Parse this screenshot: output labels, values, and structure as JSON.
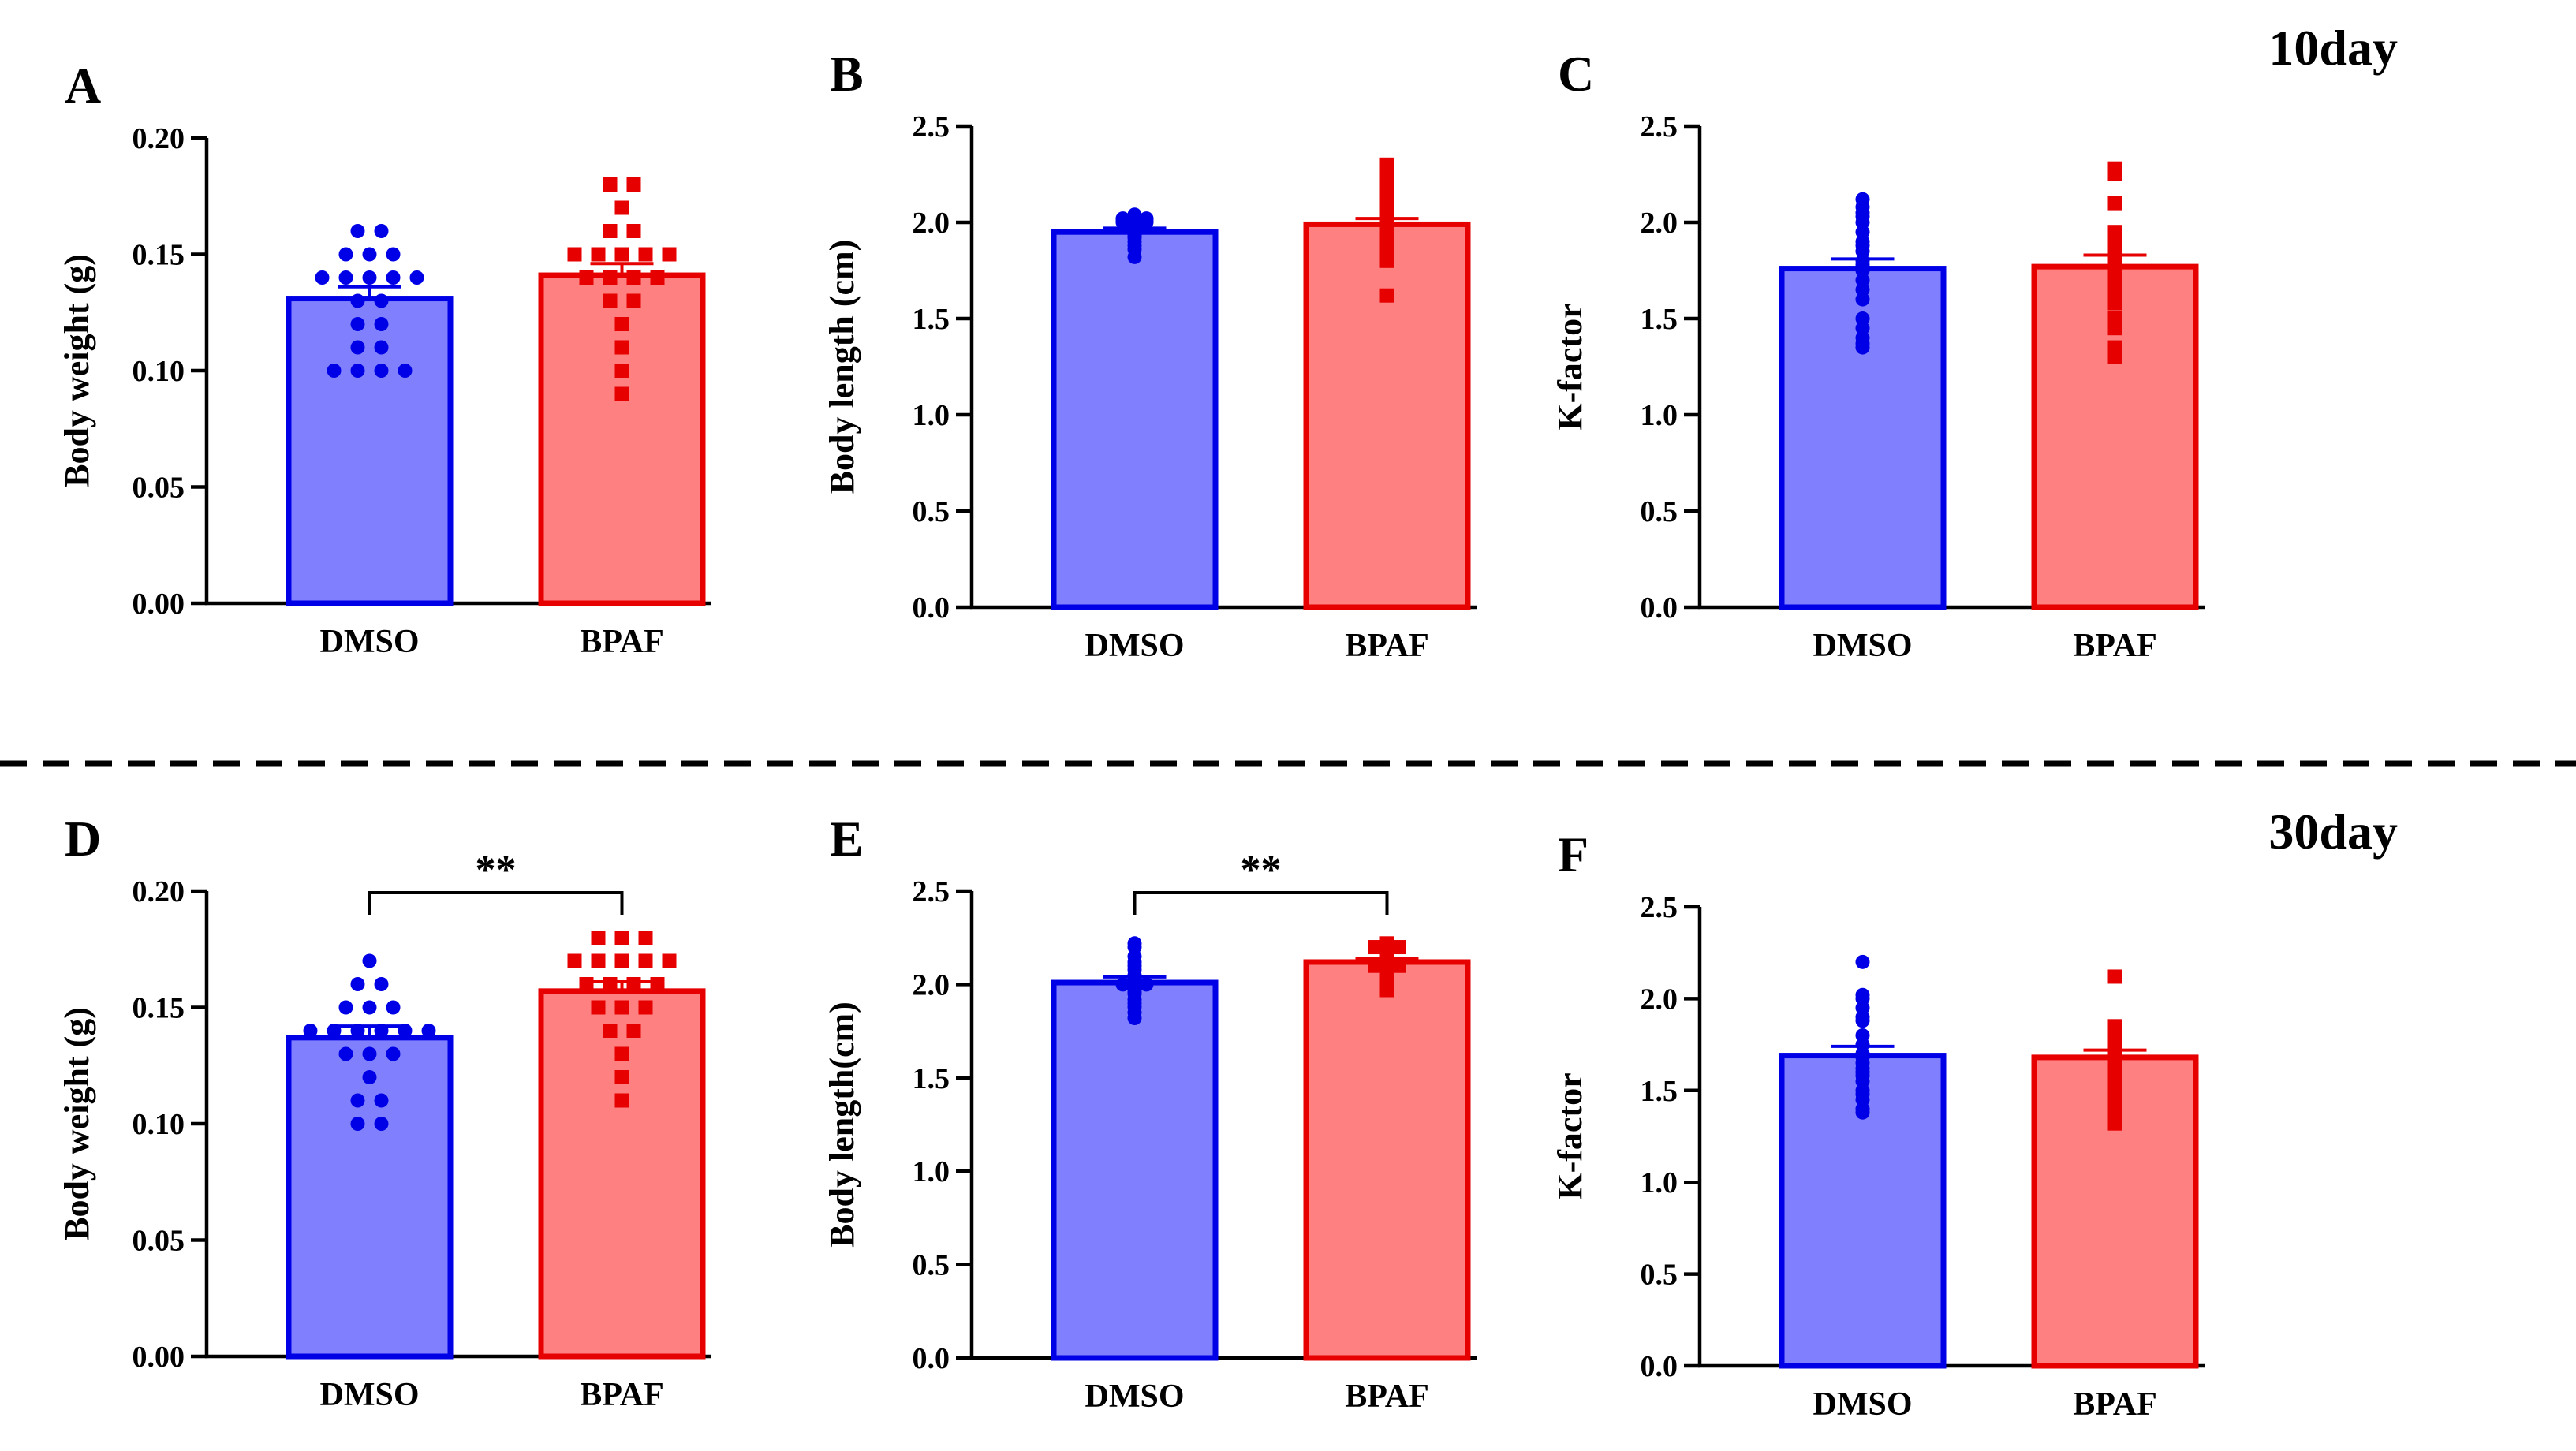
{
  "figure": {
    "day_labels": [
      "10day",
      "30day"
    ],
    "colors": {
      "dmso_fill": "#8080FF",
      "dmso_edge": "#0000E6",
      "bpaf_fill": "#FF8080",
      "bpaf_edge": "#E60000",
      "separator": "#000000"
    }
  },
  "chart_data": [
    {
      "panel": "A",
      "type": "bar",
      "row_label": "10day",
      "categories": [
        "DMSO",
        "BPAF"
      ],
      "ylabel": "Body weight (g)",
      "ylim": [
        0,
        0.2
      ],
      "yticks": [
        "0.00",
        "0.05",
        "0.10",
        "0.15",
        "0.20"
      ],
      "series": [
        {
          "name": "DMSO",
          "mean": 0.131,
          "sem": 0.005,
          "marker": "circle",
          "points": [
            0.16,
            0.16,
            0.15,
            0.15,
            0.15,
            0.14,
            0.14,
            0.14,
            0.14,
            0.14,
            0.13,
            0.13,
            0.12,
            0.12,
            0.11,
            0.11,
            0.1,
            0.1,
            0.1,
            0.1
          ]
        },
        {
          "name": "BPAF",
          "mean": 0.141,
          "sem": 0.005,
          "marker": "square",
          "points": [
            0.18,
            0.18,
            0.17,
            0.16,
            0.16,
            0.15,
            0.15,
            0.15,
            0.15,
            0.15,
            0.14,
            0.14,
            0.14,
            0.14,
            0.13,
            0.13,
            0.12,
            0.11,
            0.1,
            0.09
          ]
        }
      ]
    },
    {
      "panel": "B",
      "type": "bar",
      "row_label": "10day",
      "categories": [
        "DMSO",
        "BPAF"
      ],
      "ylabel": "Body length (cm)",
      "ylim": [
        0,
        2.5
      ],
      "yticks": [
        "0.0",
        "0.5",
        "1.0",
        "1.5",
        "2.0",
        "2.5"
      ],
      "series": [
        {
          "name": "DMSO",
          "mean": 1.95,
          "sem": 0.02,
          "marker": "circle",
          "points": [
            2.04,
            2.03,
            2.02,
            2.02,
            2.01,
            2.01,
            2.0,
            2.0,
            1.99,
            1.98,
            1.97,
            1.96,
            1.95,
            1.94,
            1.93,
            1.92,
            1.9,
            1.88,
            1.86,
            1.82
          ]
        },
        {
          "name": "BPAF",
          "mean": 1.99,
          "sem": 0.03,
          "marker": "square",
          "points": [
            2.3,
            2.25,
            2.18,
            2.12,
            2.1,
            2.08,
            2.06,
            2.05,
            2.04,
            2.03,
            2.02,
            2.01,
            2.0,
            1.98,
            1.96,
            1.92,
            1.88,
            1.85,
            1.8,
            1.62
          ]
        }
      ]
    },
    {
      "panel": "C",
      "type": "bar",
      "row_label": "10day",
      "categories": [
        "DMSO",
        "BPAF"
      ],
      "ylabel": "K-factor",
      "ylim": [
        0,
        2.5
      ],
      "yticks": [
        "0.0",
        "0.5",
        "1.0",
        "1.5",
        "2.0",
        "2.5"
      ],
      "series": [
        {
          "name": "DMSO",
          "mean": 1.76,
          "sem": 0.05,
          "marker": "circle",
          "points": [
            2.12,
            2.08,
            2.05,
            2.03,
            2.0,
            1.95,
            1.9,
            1.88,
            1.85,
            1.8,
            1.78,
            1.75,
            1.7,
            1.65,
            1.6,
            1.5,
            1.45,
            1.4,
            1.37,
            1.35
          ]
        },
        {
          "name": "BPAF",
          "mean": 1.77,
          "sem": 0.06,
          "marker": "square",
          "points": [
            2.28,
            2.26,
            2.25,
            2.1,
            1.95,
            1.9,
            1.88,
            1.85,
            1.8,
            1.78,
            1.75,
            1.7,
            1.65,
            1.62,
            1.6,
            1.58,
            1.5,
            1.45,
            1.35,
            1.3
          ]
        }
      ]
    },
    {
      "panel": "D",
      "type": "bar",
      "row_label": "30day",
      "categories": [
        "DMSO",
        "BPAF"
      ],
      "ylabel": "Body weight (g)",
      "ylim": [
        0,
        0.2
      ],
      "yticks": [
        "0.00",
        "0.05",
        "0.10",
        "0.15",
        "0.20"
      ],
      "significance": "**",
      "series": [
        {
          "name": "DMSO",
          "mean": 0.137,
          "sem": 0.005,
          "marker": "circle",
          "points": [
            0.17,
            0.16,
            0.16,
            0.15,
            0.15,
            0.15,
            0.14,
            0.14,
            0.14,
            0.14,
            0.14,
            0.13,
            0.13,
            0.13,
            0.12,
            0.11,
            0.11,
            0.1,
            0.1,
            0.14
          ]
        },
        {
          "name": "BPAF",
          "mean": 0.157,
          "sem": 0.004,
          "marker": "square",
          "points": [
            0.18,
            0.18,
            0.18,
            0.17,
            0.17,
            0.17,
            0.17,
            0.17,
            0.16,
            0.16,
            0.16,
            0.16,
            0.15,
            0.15,
            0.15,
            0.14,
            0.14,
            0.13,
            0.12,
            0.11
          ]
        }
      ]
    },
    {
      "panel": "E",
      "type": "bar",
      "row_label": "30day",
      "categories": [
        "DMSO",
        "BPAF"
      ],
      "ylabel": "Body length(cm)",
      "ylim": [
        0,
        2.5
      ],
      "yticks": [
        "0.0",
        "0.5",
        "1.0",
        "1.5",
        "2.0",
        "2.5"
      ],
      "significance": "**",
      "series": [
        {
          "name": "DMSO",
          "mean": 2.01,
          "sem": 0.03,
          "marker": "circle",
          "points": [
            2.22,
            2.2,
            2.15,
            2.12,
            2.1,
            2.08,
            2.05,
            2.03,
            2.02,
            2.01,
            2.0,
            2.0,
            1.98,
            1.96,
            1.95,
            1.92,
            1.9,
            1.88,
            1.85,
            1.82
          ]
        },
        {
          "name": "BPAF",
          "mean": 2.12,
          "sem": 0.02,
          "marker": "square",
          "points": [
            2.22,
            2.2,
            2.2,
            2.19,
            2.18,
            2.16,
            2.15,
            2.14,
            2.13,
            2.12,
            2.11,
            2.1,
            2.1,
            2.09,
            2.08,
            2.06,
            2.05,
            2.03,
            2.0,
            1.97
          ]
        }
      ]
    },
    {
      "panel": "F",
      "type": "bar",
      "row_label": "30day",
      "categories": [
        "DMSO",
        "BPAF"
      ],
      "ylabel": "K-factor",
      "ylim": [
        0,
        2.5
      ],
      "yticks": [
        "0.0",
        "0.5",
        "1.0",
        "1.5",
        "2.0",
        "2.5"
      ],
      "series": [
        {
          "name": "DMSO",
          "mean": 1.69,
          "sem": 0.05,
          "marker": "circle",
          "points": [
            2.2,
            2.02,
            2.0,
            1.95,
            1.9,
            1.88,
            1.8,
            1.75,
            1.7,
            1.68,
            1.65,
            1.62,
            1.6,
            1.58,
            1.55,
            1.5,
            1.48,
            1.45,
            1.4,
            1.38
          ]
        },
        {
          "name": "BPAF",
          "mean": 1.68,
          "sem": 0.04,
          "marker": "square",
          "points": [
            2.12,
            1.85,
            1.83,
            1.82,
            1.8,
            1.78,
            1.75,
            1.72,
            1.7,
            1.68,
            1.65,
            1.62,
            1.6,
            1.58,
            1.55,
            1.5,
            1.45,
            1.4,
            1.35,
            1.32
          ]
        }
      ]
    }
  ]
}
